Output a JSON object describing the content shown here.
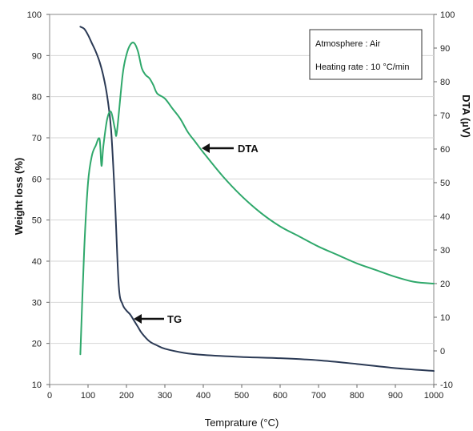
{
  "chart_data": {
    "type": "line",
    "title": "",
    "xlabel": "Temprature (°C)",
    "ylabel_left": "Weight loss (%)",
    "ylabel_right": "DTA (µV)",
    "xlim": [
      0,
      1000
    ],
    "ylim_left": [
      10,
      100
    ],
    "ylim_right": [
      -10,
      100
    ],
    "x_ticks": [
      0,
      100,
      200,
      300,
      400,
      500,
      600,
      700,
      800,
      900,
      1000
    ],
    "y_left_ticks": [
      10,
      20,
      30,
      40,
      50,
      60,
      70,
      80,
      90,
      100
    ],
    "y_right_ticks": [
      -10,
      0,
      10,
      20,
      30,
      40,
      50,
      60,
      70,
      80,
      90,
      100
    ],
    "grid": true,
    "legend": {
      "placement": "top-right",
      "lines": [
        "Atmosphere : Air",
        "Heating rate : 10 °C/min"
      ]
    },
    "annotations": [
      {
        "text": "DTA",
        "series": "DTA",
        "x": 400
      },
      {
        "text": "TG",
        "series": "TG",
        "x": 220
      }
    ],
    "series": [
      {
        "name": "TG",
        "axis": "left",
        "color": "#2b3a55",
        "x": [
          80,
          90,
          100,
          110,
          120,
          130,
          140,
          150,
          160,
          170,
          180,
          190,
          200,
          210,
          220,
          230,
          240,
          260,
          280,
          300,
          350,
          400,
          500,
          600,
          700,
          800,
          900,
          1000
        ],
        "y": [
          97,
          96.5,
          95,
          93,
          91,
          88.5,
          85,
          80,
          72,
          55,
          34,
          29.5,
          28,
          27,
          25.5,
          24,
          22.5,
          20.5,
          19.5,
          18.7,
          17.7,
          17.2,
          16.7,
          16.4,
          15.9,
          15,
          14,
          13.3
        ]
      },
      {
        "name": "DTA",
        "axis": "right",
        "color": "#2fa86b",
        "x": [
          80,
          90,
          100,
          110,
          120,
          130,
          135,
          140,
          150,
          160,
          170,
          175,
          190,
          200,
          210,
          220,
          230,
          240,
          250,
          260,
          270,
          280,
          300,
          320,
          340,
          360,
          380,
          400,
          450,
          500,
          550,
          600,
          650,
          700,
          750,
          800,
          850,
          900,
          950,
          1000
        ],
        "y": [
          -1,
          30,
          50,
          58,
          61,
          63,
          55,
          61,
          69,
          71,
          66,
          65,
          82,
          88,
          91,
          91.5,
          89,
          84,
          82,
          81,
          79,
          76.5,
          75,
          72,
          69,
          65,
          62,
          59,
          52,
          46,
          41,
          37,
          34,
          31,
          28.5,
          26,
          24,
          22,
          20.5,
          20
        ]
      }
    ]
  }
}
